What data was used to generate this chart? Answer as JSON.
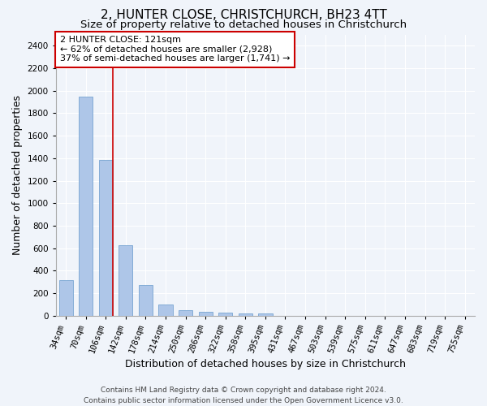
{
  "title": "2, HUNTER CLOSE, CHRISTCHURCH, BH23 4TT",
  "subtitle": "Size of property relative to detached houses in Christchurch",
  "xlabel": "Distribution of detached houses by size in Christchurch",
  "ylabel": "Number of detached properties",
  "footer_line1": "Contains HM Land Registry data © Crown copyright and database right 2024.",
  "footer_line2": "Contains public sector information licensed under the Open Government Licence v3.0.",
  "categories": [
    "34sqm",
    "70sqm",
    "106sqm",
    "142sqm",
    "178sqm",
    "214sqm",
    "250sqm",
    "286sqm",
    "322sqm",
    "358sqm",
    "395sqm",
    "431sqm",
    "467sqm",
    "503sqm",
    "539sqm",
    "575sqm",
    "611sqm",
    "647sqm",
    "683sqm",
    "719sqm",
    "755sqm"
  ],
  "values": [
    315,
    1950,
    1385,
    630,
    275,
    100,
    50,
    35,
    25,
    20,
    20,
    0,
    0,
    0,
    0,
    0,
    0,
    0,
    0,
    0,
    0
  ],
  "bar_color": "#aec6e8",
  "bar_edge_color": "#6699cc",
  "vline_color": "#cc0000",
  "annotation_text": "2 HUNTER CLOSE: 121sqm\n← 62% of detached houses are smaller (2,928)\n37% of semi-detached houses are larger (1,741) →",
  "annotation_box_color": "#ffffff",
  "annotation_box_edge_color": "#cc0000",
  "ylim": [
    0,
    2500
  ],
  "yticks": [
    0,
    200,
    400,
    600,
    800,
    1000,
    1200,
    1400,
    1600,
    1800,
    2000,
    2200,
    2400
  ],
  "background_color": "#f0f4fa",
  "plot_background": "#f0f4fa",
  "grid_color": "#ffffff",
  "title_fontsize": 11,
  "subtitle_fontsize": 9.5,
  "axis_label_fontsize": 9,
  "tick_fontsize": 7.5,
  "annotation_fontsize": 8,
  "footer_fontsize": 6.5
}
